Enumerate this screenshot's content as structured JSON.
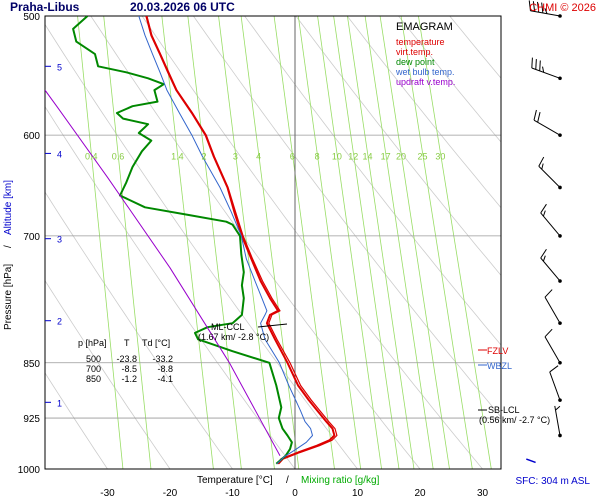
{
  "header": {
    "station": "Praha-Libus",
    "datetime": "20.03.2026 06 UTC",
    "copyright": "CHMI © 2026"
  },
  "legend": {
    "title": "EMAGRAM",
    "items": [
      {
        "label": "temperature",
        "color": "#dd0000"
      },
      {
        "label": "virt.temp.",
        "color": "#dd0000"
      },
      {
        "label": "dew point",
        "color": "#008800"
      },
      {
        "label": "wet bulb temp.",
        "color": "#3366cc"
      },
      {
        "label": "updraft v.temp.",
        "color": "#9900cc"
      }
    ]
  },
  "axes": {
    "x_title_left": "Temperature [°C]",
    "x_title_sep": "/",
    "x_title_right": "Mixing ratio [g/kg]",
    "y_title_left": "Pressure [hPa]",
    "y_title_sep": "/",
    "y_title_right": "Altitude [km]",
    "sfc_label": "SFC: 304 m ASL"
  },
  "table": {
    "header": [
      "p [hPa]",
      "T",
      "Td [°C]"
    ],
    "rows": [
      [
        "500",
        "-23.8",
        "-33.2"
      ],
      [
        "700",
        "-8.5",
        "-8.8"
      ],
      [
        "850",
        "-1.2",
        "-4.1"
      ]
    ]
  },
  "annotations": {
    "ml_ccl_label": "ML-CCL",
    "ml_ccl_detail": "(1.67 km/ -2.8 °C)",
    "sb_lcl_label": "SB-LCL",
    "sb_lcl_detail": "(0.56 km/ -2.7 °C)",
    "fzlv": "FZLV",
    "wbzl": "WBZL"
  },
  "colors": {
    "temperature": "#dd0000",
    "dewpoint": "#008800",
    "wetbulb": "#3366cc",
    "updraft": "#9900cc",
    "mixing_ratio_lines": "#99dd66",
    "grid": "#999999",
    "dry_adiabat": "#cccccc",
    "altitude": "#0000cc",
    "title": "#000066"
  },
  "chart_data": {
    "type": "line",
    "title": "EMAGRAM",
    "xlabel": "Temperature [°C] / Mixing ratio [g/kg]",
    "ylabel": "Pressure [hPa] / Altitude [km]",
    "xlim": [
      -40,
      35
    ],
    "ylim": [
      1000,
      500
    ],
    "y_scale": "log",
    "x_ticks": [
      -30,
      -20,
      -10,
      0,
      10,
      20,
      30
    ],
    "y_ticks": [
      500,
      600,
      700,
      850,
      925,
      1000
    ],
    "altitude_ticks": [
      {
        "km": 1,
        "p": 903
      },
      {
        "km": 2,
        "p": 797
      },
      {
        "km": 3,
        "p": 703
      },
      {
        "km": 4,
        "p": 617
      },
      {
        "km": 5,
        "p": 540
      }
    ],
    "mixing_ratio_labels": [
      "0.4",
      "0.6",
      "1.4",
      "2",
      "3",
      "4",
      "6",
      "8",
      "10",
      "12",
      "14",
      "17",
      "20",
      "25",
      "30"
    ],
    "mixing_ratio_labels_pressure": 620,
    "series": [
      {
        "name": "temperature",
        "color": "#dd0000",
        "points": [
          [
            -2.8,
            992
          ],
          [
            -2.2,
            985
          ],
          [
            0.5,
            975
          ],
          [
            3.5,
            965
          ],
          [
            5.5,
            957
          ],
          [
            6.3,
            950
          ],
          [
            6.0,
            940
          ],
          [
            5.0,
            930
          ],
          [
            3.6,
            915
          ],
          [
            2.2,
            900
          ],
          [
            0.5,
            880
          ],
          [
            -1.2,
            850
          ],
          [
            -3.2,
            820
          ],
          [
            -4.5,
            800
          ],
          [
            -4.0,
            790
          ],
          [
            -2.7,
            785
          ],
          [
            -4.0,
            770
          ],
          [
            -5.5,
            750
          ],
          [
            -7.0,
            725
          ],
          [
            -8.5,
            700
          ],
          [
            -9.7,
            675
          ],
          [
            -10.8,
            650
          ],
          [
            -13.0,
            620
          ],
          [
            -14.3,
            600
          ],
          [
            -16.5,
            580
          ],
          [
            -19.0,
            560
          ],
          [
            -20.3,
            545
          ],
          [
            -21.6,
            530
          ],
          [
            -23.0,
            515
          ],
          [
            -23.8,
            500
          ]
        ]
      },
      {
        "name": "virt.temp.",
        "color": "#dd0000",
        "points": [
          [
            -2.6,
            992
          ],
          [
            -1.9,
            985
          ],
          [
            0.8,
            975
          ],
          [
            3.9,
            965
          ],
          [
            5.9,
            957
          ],
          [
            6.7,
            950
          ],
          [
            6.4,
            940
          ],
          [
            5.4,
            930
          ],
          [
            4.0,
            915
          ],
          [
            2.6,
            900
          ],
          [
            0.9,
            880
          ],
          [
            -0.8,
            850
          ],
          [
            -2.9,
            820
          ],
          [
            -4.2,
            800
          ],
          [
            -3.7,
            790
          ],
          [
            -2.4,
            785
          ],
          [
            -3.7,
            770
          ],
          [
            -5.2,
            750
          ],
          [
            -6.8,
            725
          ],
          [
            -8.3,
            700
          ],
          [
            -9.5,
            675
          ],
          [
            -10.7,
            650
          ],
          [
            -12.9,
            620
          ],
          [
            -14.2,
            600
          ],
          [
            -16.4,
            580
          ],
          [
            -18.9,
            560
          ],
          [
            -20.2,
            545
          ],
          [
            -21.5,
            530
          ],
          [
            -22.9,
            515
          ],
          [
            -23.7,
            500
          ]
        ]
      },
      {
        "name": "dew point",
        "color": "#008800",
        "points": [
          [
            -3.0,
            992
          ],
          [
            -1.5,
            980
          ],
          [
            -0.8,
            970
          ],
          [
            -0.5,
            960
          ],
          [
            -1.2,
            950
          ],
          [
            -2.0,
            940
          ],
          [
            -2.6,
            925
          ],
          [
            -2.2,
            910
          ],
          [
            -2.6,
            895
          ],
          [
            -3.0,
            880
          ],
          [
            -4.1,
            850
          ],
          [
            -10.0,
            835
          ],
          [
            -15.5,
            820
          ],
          [
            -16.0,
            812
          ],
          [
            -14.0,
            805
          ],
          [
            -10.0,
            800
          ],
          [
            -8.5,
            790
          ],
          [
            -8.2,
            770
          ],
          [
            -8.5,
            755
          ],
          [
            -8.2,
            740
          ],
          [
            -8.6,
            720
          ],
          [
            -8.8,
            700
          ],
          [
            -10.0,
            688
          ],
          [
            -11.0,
            685
          ],
          [
            -17.0,
            678
          ],
          [
            -24.0,
            670
          ],
          [
            -28.0,
            658
          ],
          [
            -27.0,
            645
          ],
          [
            -26.0,
            630
          ],
          [
            -24.5,
            615
          ],
          [
            -23.0,
            605
          ],
          [
            -25.0,
            598
          ],
          [
            -23.5,
            590
          ],
          [
            -27.5,
            585
          ],
          [
            -28.5,
            580
          ],
          [
            -26.0,
            574
          ],
          [
            -22.0,
            570
          ],
          [
            -22.5,
            560
          ],
          [
            -21.0,
            555
          ],
          [
            -23.5,
            550
          ],
          [
            -27.0,
            545
          ],
          [
            -31.5,
            540
          ],
          [
            -32.0,
            530
          ],
          [
            -35.0,
            520
          ],
          [
            -35.5,
            510
          ],
          [
            -33.2,
            500
          ]
        ]
      },
      {
        "name": "wet bulb temp.",
        "color": "#3366cc",
        "points": [
          [
            -2.9,
            992
          ],
          [
            -1.8,
            982
          ],
          [
            0.2,
            970
          ],
          [
            1.8,
            960
          ],
          [
            2.8,
            950
          ],
          [
            2.5,
            940
          ],
          [
            1.6,
            930
          ],
          [
            0.9,
            915
          ],
          [
            0.1,
            900
          ],
          [
            -1.0,
            880
          ],
          [
            -2.5,
            850
          ],
          [
            -4.8,
            820
          ],
          [
            -5.5,
            800
          ],
          [
            -4.8,
            790
          ],
          [
            -4.5,
            785
          ],
          [
            -5.3,
            770
          ],
          [
            -6.4,
            750
          ],
          [
            -7.8,
            725
          ],
          [
            -8.6,
            700
          ],
          [
            -10.2,
            675
          ],
          [
            -12.0,
            650
          ],
          [
            -14.8,
            620
          ],
          [
            -16.5,
            600
          ],
          [
            -18.5,
            580
          ],
          [
            -20.5,
            560
          ],
          [
            -21.6,
            545
          ],
          [
            -22.8,
            530
          ],
          [
            -24.0,
            515
          ],
          [
            -25.0,
            500
          ]
        ]
      },
      {
        "name": "updraft v.temp.",
        "color": "#9900cc",
        "points": [
          [
            -2.4,
            980
          ],
          [
            -10.5,
            850
          ],
          [
            -20.0,
            735
          ],
          [
            -30.0,
            640
          ],
          [
            -38.0,
            575
          ],
          [
            -40.0,
            560
          ]
        ]
      }
    ],
    "extras": [
      {
        "name": "sb-lcl-line",
        "color": "#0000cc",
        "points": [
          [
            37.0,
            985
          ],
          [
            38.5,
            990
          ]
        ]
      }
    ],
    "winds": [
      {
        "p": 500,
        "dir": 280,
        "speed": 45
      },
      {
        "p": 550,
        "dir": 290,
        "speed": 35
      },
      {
        "p": 600,
        "dir": 300,
        "speed": 20
      },
      {
        "p": 650,
        "dir": 315,
        "speed": 15
      },
      {
        "p": 700,
        "dir": 320,
        "speed": 15
      },
      {
        "p": 750,
        "dir": 320,
        "speed": 15
      },
      {
        "p": 800,
        "dir": 330,
        "speed": 10
      },
      {
        "p": 850,
        "dir": 330,
        "speed": 10
      },
      {
        "p": 900,
        "dir": 340,
        "speed": 10
      },
      {
        "p": 950,
        "dir": 350,
        "speed": 5
      }
    ]
  }
}
